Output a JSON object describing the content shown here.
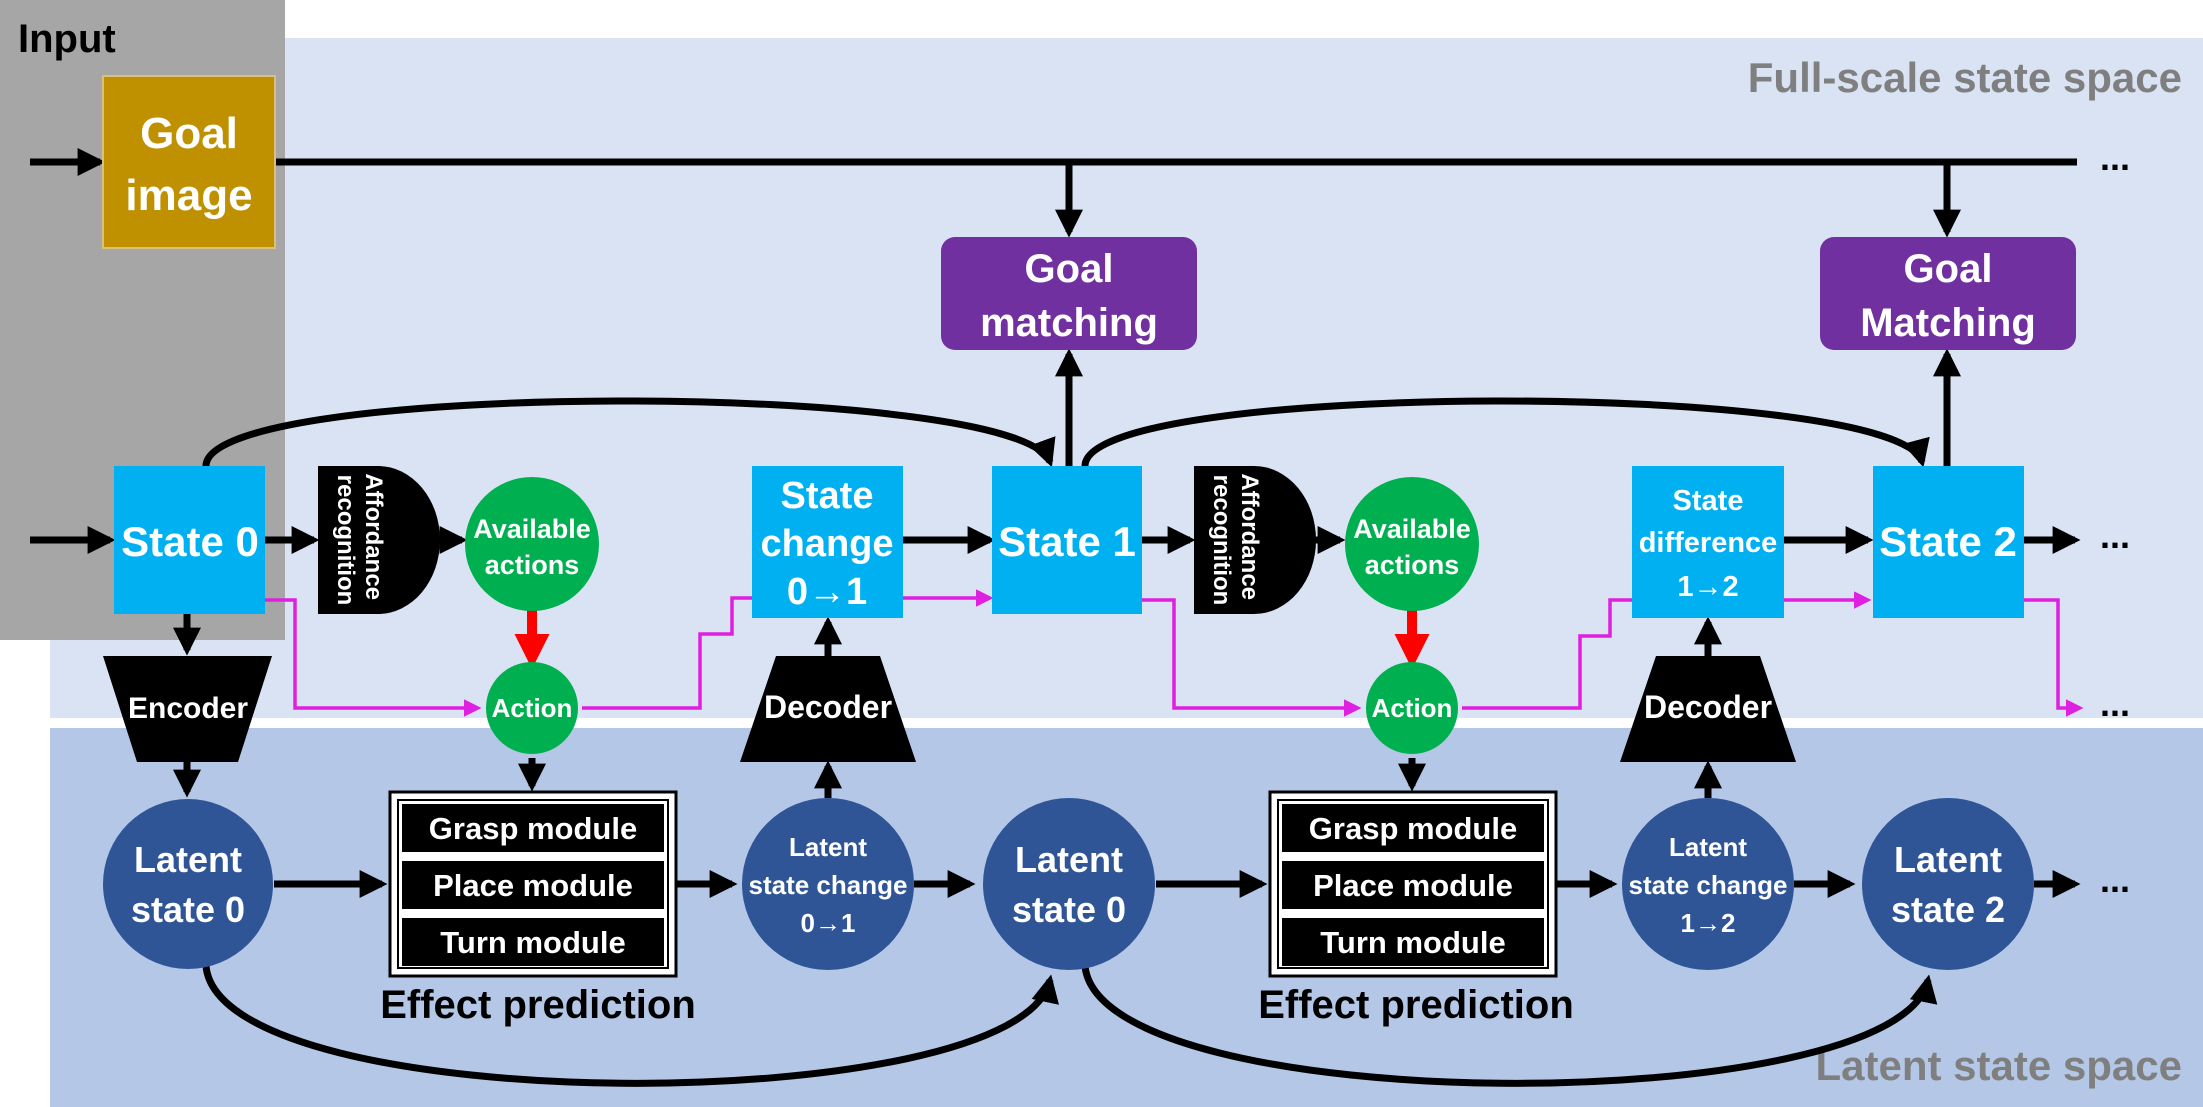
{
  "labels": {
    "input": "Input",
    "full_scale": "Full-scale state space",
    "latent_space": "Latent state space",
    "goal_image": [
      "Goal",
      "image"
    ],
    "goal_matching_1": [
      "Goal",
      "matching"
    ],
    "goal_matching_2": [
      "Goal",
      "Matching"
    ],
    "state0": "State 0",
    "state1": "State 1",
    "state2": "State 2",
    "state_change": [
      "State",
      "change",
      "0→1"
    ],
    "state_difference": [
      "State",
      "difference",
      "1→2"
    ],
    "affordance": [
      "Affordance",
      "recognition"
    ],
    "available_actions": [
      "Available",
      "actions"
    ],
    "action": "Action",
    "encoder": "Encoder",
    "decoder": "Decoder",
    "latent_state_0": [
      "Latent",
      "state 0"
    ],
    "latent_state_2": [
      "Latent",
      "state 2"
    ],
    "latent_change_01": [
      "Latent",
      "state change",
      "0→1"
    ],
    "latent_change_12": [
      "Latent",
      "state change",
      "1→2"
    ],
    "grasp_module": "Grasp module",
    "place_module": "Place module",
    "turn_module": "Turn module",
    "effect_prediction": "Effect prediction",
    "ellipsis": "..."
  },
  "colors": {
    "full_scale_bg": "#dae3f3",
    "latent_bg": "#b4c7e7",
    "input_bg": "#a6a6a6",
    "goal_image": "#bf9000",
    "goal_matching": "#7030a0",
    "state": "#00b0f0",
    "green": "#00b050",
    "latent": "#2f5597",
    "black": "#000000",
    "magenta": "#e020e0",
    "red": "#ff0000",
    "region_label": "#7f7f7f"
  }
}
